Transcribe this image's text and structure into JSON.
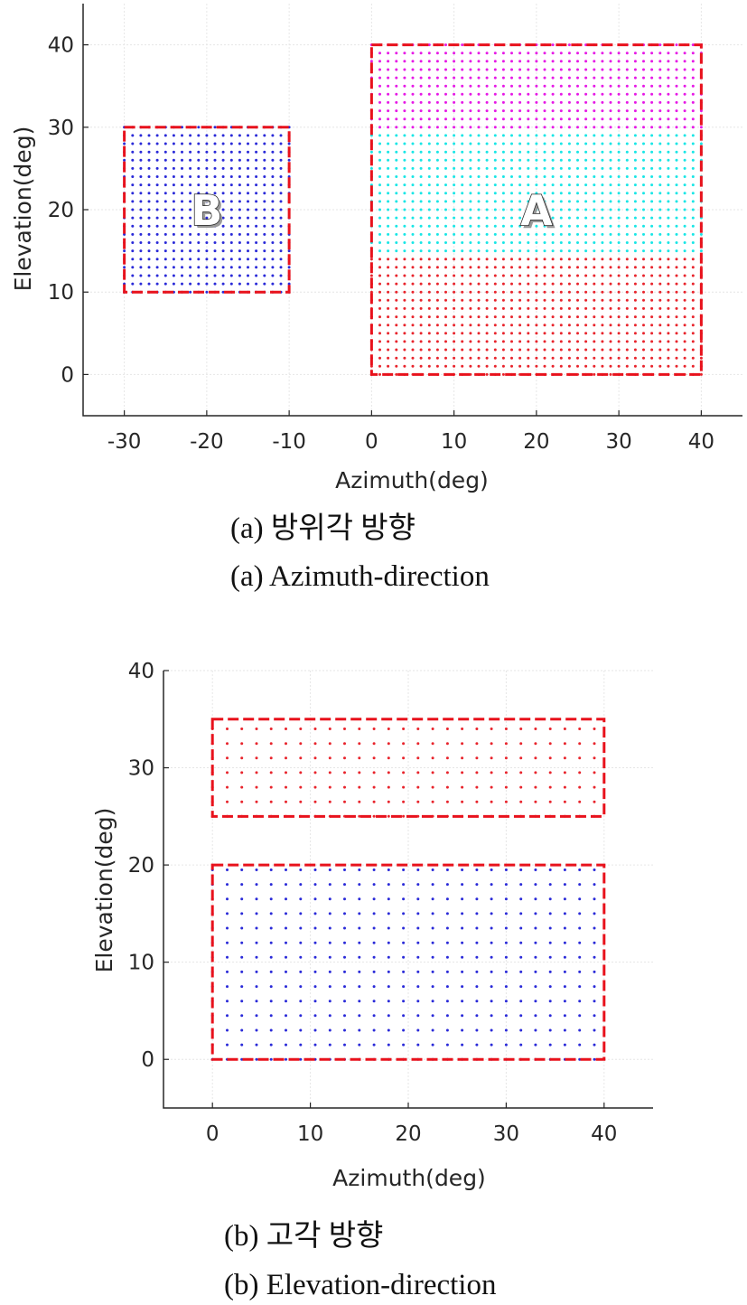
{
  "captions": {
    "a_ko": "(a)  방위각 방향",
    "a_en": "(a)  Azimuth-direction",
    "b_ko": "(b)  고각 방향",
    "b_en": "(b)  Elevation-direction"
  },
  "chart_data": [
    {
      "type": "scatter",
      "xlabel": "Azimuth(deg)",
      "ylabel": "Elevation(deg)",
      "xlim": [
        -35,
        45
      ],
      "ylim": [
        -5,
        45
      ],
      "xticks": [
        -30,
        -20,
        -10,
        0,
        10,
        20,
        30,
        40
      ],
      "yticks": [
        0,
        10,
        20,
        30,
        40
      ],
      "grid": true,
      "labels": [
        {
          "text": "B",
          "x": -20,
          "y": 20
        },
        {
          "text": "A",
          "x": 20,
          "y": 20
        }
      ],
      "regions": [
        {
          "name": "B",
          "x0": -30,
          "x1": -10,
          "y0": 10,
          "y1": 30,
          "color": "#e8121c"
        },
        {
          "name": "A",
          "x0": 0,
          "x1": 40,
          "y0": 0,
          "y1": 40,
          "color": "#e8121c"
        }
      ],
      "grids": [
        {
          "x0": -30,
          "x1": -10,
          "y0": 10,
          "y1": 30,
          "step": 1,
          "color": "#2a2ad8"
        },
        {
          "x0": 0,
          "x1": 40,
          "y0": 0,
          "y1": 14,
          "step": 1,
          "color": "#e8242c"
        },
        {
          "x0": 0,
          "x1": 40,
          "y0": 15,
          "y1": 29,
          "step": 1,
          "color": "#19e6e6"
        },
        {
          "x0": 0,
          "x1": 40,
          "y0": 30,
          "y1": 40,
          "step": 1,
          "color": "#e619e6"
        }
      ]
    },
    {
      "type": "scatter",
      "xlabel": "Azimuth(deg)",
      "ylabel": "Elevation(deg)",
      "xlim": [
        -5,
        45
      ],
      "ylim": [
        -5,
        40
      ],
      "xticks": [
        0,
        10,
        20,
        30,
        40
      ],
      "yticks": [
        0,
        10,
        20,
        30,
        40
      ],
      "grid": true,
      "labels": [],
      "regions": [
        {
          "x0": 0,
          "x1": 40,
          "y0": 25,
          "y1": 35,
          "color": "#e8121c"
        },
        {
          "x0": 0,
          "x1": 40,
          "y0": 0,
          "y1": 20,
          "color": "#e8121c"
        }
      ],
      "grids": [
        {
          "x0": 0,
          "x1": 40,
          "y0": 25,
          "y1": 35,
          "step": 1.5,
          "color": "#e8242c"
        },
        {
          "x0": 0,
          "x1": 40,
          "y0": 0,
          "y1": 20,
          "step": 1.5,
          "color": "#2a2ad8"
        }
      ]
    }
  ]
}
